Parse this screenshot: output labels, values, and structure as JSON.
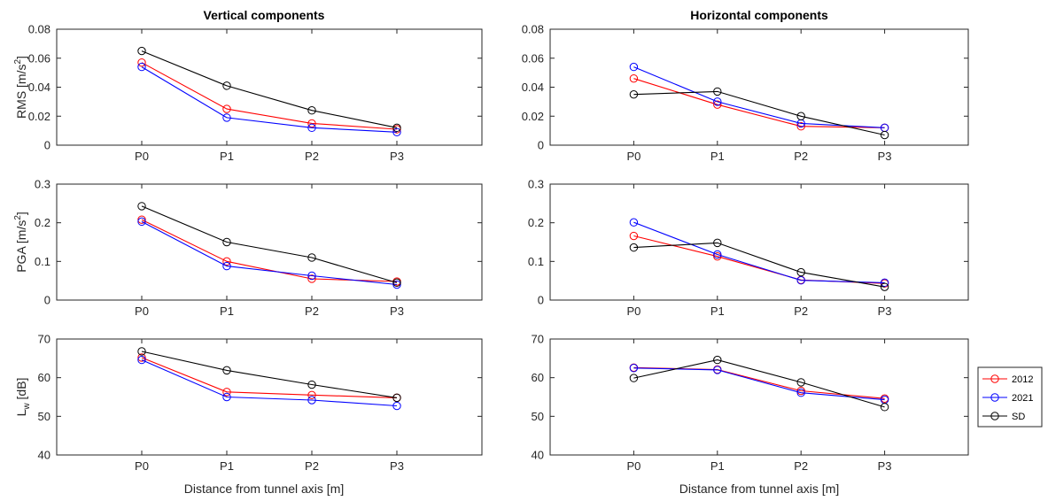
{
  "figure": {
    "col_titles": [
      "Vertical components",
      "Horizontal components"
    ],
    "xlabel": "Distance from tunnel axis [m]",
    "legend": {
      "placement": "right",
      "entries": [
        "2012",
        "2021",
        "SD"
      ]
    }
  },
  "series_colors": {
    "2012": "#ff0000",
    "2021": "#0000ff",
    "SD": "#000000"
  },
  "chart_data": [
    {
      "type": "line",
      "id": "rms-vertical",
      "column": "vertical",
      "row": 0,
      "categories": [
        "P0",
        "P1",
        "P2",
        "P3"
      ],
      "ylabel": "RMS [m/s2]",
      "ylabel_main": "RMS [m/s",
      "ylabel_sup": "2",
      "ylabel_end": "]",
      "ylim": [
        0,
        0.08
      ],
      "yticks": [
        0,
        0.02,
        0.04,
        0.06,
        0.08
      ],
      "ytick_labels": [
        "0",
        "0.02",
        "0.04",
        "0.06",
        "0.08"
      ],
      "series": [
        {
          "name": "2012",
          "values": [
            0.057,
            0.025,
            0.015,
            0.011
          ]
        },
        {
          "name": "2021",
          "values": [
            0.054,
            0.019,
            0.012,
            0.009
          ]
        },
        {
          "name": "SD",
          "values": [
            0.065,
            0.041,
            0.024,
            0.012
          ]
        }
      ]
    },
    {
      "type": "line",
      "id": "rms-horizontal",
      "column": "horizontal",
      "row": 0,
      "categories": [
        "P0",
        "P1",
        "P2",
        "P3"
      ],
      "ylabel": "",
      "ylim": [
        0,
        0.08
      ],
      "yticks": [
        0,
        0.02,
        0.04,
        0.06,
        0.08
      ],
      "ytick_labels": [
        "0",
        "0.02",
        "0.04",
        "0.06",
        "0.08"
      ],
      "series": [
        {
          "name": "2012",
          "values": [
            0.046,
            0.028,
            0.013,
            0.012
          ]
        },
        {
          "name": "2021",
          "values": [
            0.054,
            0.03,
            0.015,
            0.012
          ]
        },
        {
          "name": "SD",
          "values": [
            0.035,
            0.037,
            0.02,
            0.007
          ]
        }
      ]
    },
    {
      "type": "line",
      "id": "pga-vertical",
      "column": "vertical",
      "row": 1,
      "categories": [
        "P0",
        "P1",
        "P2",
        "P3"
      ],
      "ylabel": "PGA [m/s2]",
      "ylabel_main": "PGA [m/s",
      "ylabel_sup": "2",
      "ylabel_end": "]",
      "ylim": [
        0,
        0.3
      ],
      "yticks": [
        0,
        0.1,
        0.2,
        0.3
      ],
      "ytick_labels": [
        "0",
        "0.1",
        "0.2",
        "0.3"
      ],
      "series": [
        {
          "name": "2012",
          "values": [
            0.208,
            0.1,
            0.055,
            0.048
          ]
        },
        {
          "name": "2021",
          "values": [
            0.203,
            0.088,
            0.063,
            0.04
          ]
        },
        {
          "name": "SD",
          "values": [
            0.243,
            0.15,
            0.11,
            0.045
          ]
        }
      ]
    },
    {
      "type": "line",
      "id": "pga-horizontal",
      "column": "horizontal",
      "row": 1,
      "categories": [
        "P0",
        "P1",
        "P2",
        "P3"
      ],
      "ylabel": "",
      "ylim": [
        0,
        0.3
      ],
      "yticks": [
        0,
        0.1,
        0.2,
        0.3
      ],
      "ytick_labels": [
        "0",
        "0.1",
        "0.2",
        "0.3"
      ],
      "series": [
        {
          "name": "2012",
          "values": [
            0.166,
            0.113,
            0.052,
            0.043
          ]
        },
        {
          "name": "2021",
          "values": [
            0.201,
            0.118,
            0.051,
            0.045
          ]
        },
        {
          "name": "SD",
          "values": [
            0.136,
            0.148,
            0.072,
            0.034
          ]
        }
      ]
    },
    {
      "type": "line",
      "id": "lw-vertical",
      "column": "vertical",
      "row": 2,
      "categories": [
        "P0",
        "P1",
        "P2",
        "P3"
      ],
      "ylabel": "Lw [dB]",
      "ylabel_main": "L",
      "ylabel_sub": "w",
      "ylabel_end": " [dB]",
      "ylim": [
        40,
        70
      ],
      "yticks": [
        40,
        50,
        60,
        70
      ],
      "ytick_labels": [
        "40",
        "50",
        "60",
        "70"
      ],
      "series": [
        {
          "name": "2012",
          "values": [
            65.2,
            56.3,
            55.5,
            54.8
          ]
        },
        {
          "name": "2021",
          "values": [
            64.6,
            55.0,
            54.2,
            52.7
          ]
        },
        {
          "name": "SD",
          "values": [
            66.8,
            61.9,
            58.2,
            54.8
          ]
        }
      ]
    },
    {
      "type": "line",
      "id": "lw-horizontal",
      "column": "horizontal",
      "row": 2,
      "categories": [
        "P0",
        "P1",
        "P2",
        "P3"
      ],
      "ylabel": "",
      "ylim": [
        40,
        70
      ],
      "yticks": [
        40,
        50,
        60,
        70
      ],
      "ytick_labels": [
        "40",
        "50",
        "60",
        "70"
      ],
      "series": [
        {
          "name": "2012",
          "values": [
            62.6,
            62.1,
            56.6,
            54.6
          ]
        },
        {
          "name": "2021",
          "values": [
            62.5,
            62.0,
            56.1,
            54.3
          ]
        },
        {
          "name": "SD",
          "values": [
            59.9,
            64.6,
            58.8,
            52.4
          ]
        }
      ]
    }
  ]
}
